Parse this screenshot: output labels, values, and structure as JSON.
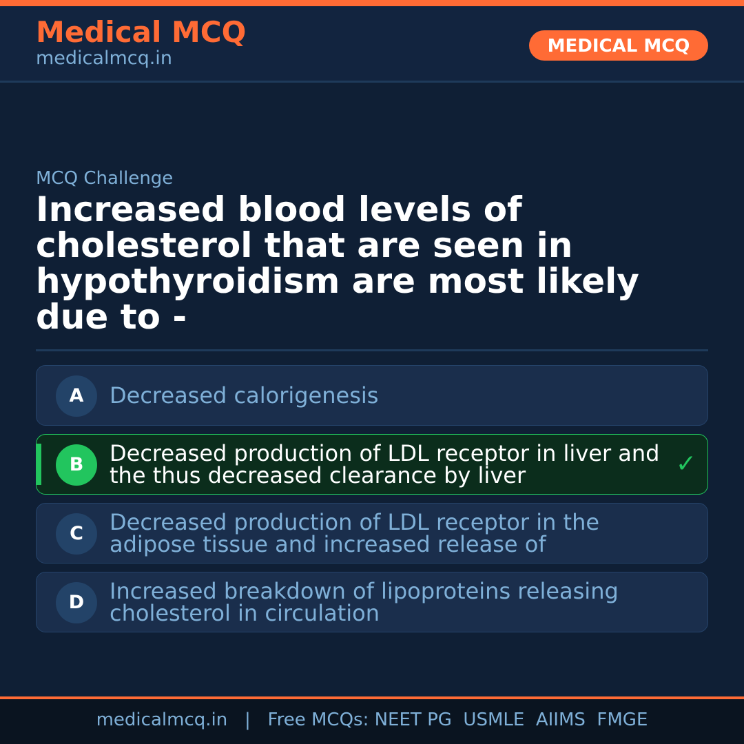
{
  "header": {
    "brand": "Medical MCQ",
    "site": "medicalmcq.in",
    "badge": "MEDICAL MCQ"
  },
  "colors": {
    "accent": "#ff6b35",
    "correct": "#22c55e",
    "background": "#0f1f35"
  },
  "main": {
    "label": "MCQ Challenge",
    "question": "Increased blood levels of cholesterol that are seen in hypothyroidism are most likely due to -",
    "options": [
      {
        "letter": "A",
        "text": "Decreased calorigenesis",
        "correct": false
      },
      {
        "letter": "B",
        "text": "Decreased production of LDL receptor in liver and the thus decreased clearance by liver",
        "correct": true,
        "icon": "check-icon",
        "check": "✓"
      },
      {
        "letter": "C",
        "text": "Decreased production of LDL receptor in the adipose tissue and increased release of",
        "correct": false
      },
      {
        "letter": "D",
        "text": "Increased breakdown of lipoproteins releasing cholesterol in circulation",
        "correct": false
      }
    ]
  },
  "footer": {
    "text": "medicalmcq.in   |   Free MCQs: NEET PG  USMLE  AIIMS  FMGE"
  }
}
